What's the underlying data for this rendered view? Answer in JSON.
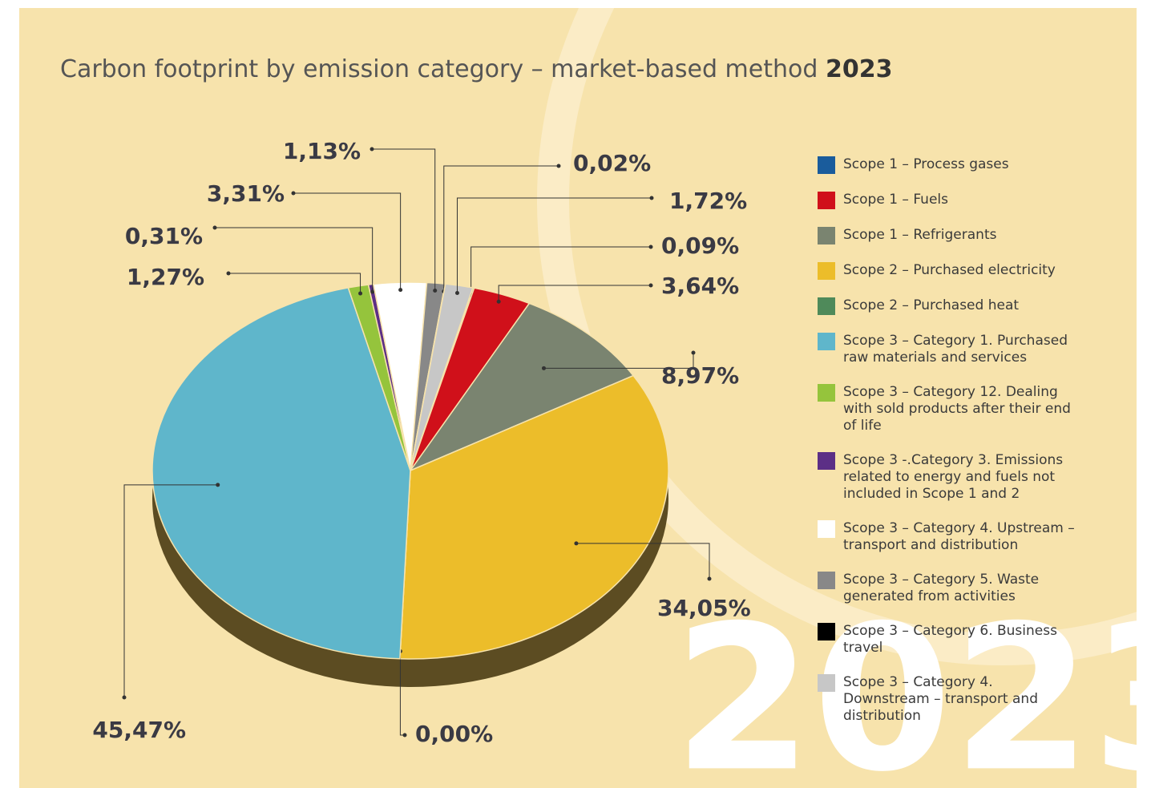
{
  "chart_data": {
    "type": "pie",
    "title": "Carbon footprint by emission category – market-based method",
    "title_year": "2023",
    "categories": [
      "Scope 1 – Process gases",
      "Scope 1 – Fuels",
      "Scope 1 – Refrigerants",
      "Scope 2 – Purchased electricity",
      "Scope 2 – Purchased heat",
      "Scope 3 – Category 1. Purchased raw materials and services",
      "Scope 3 – Category 12. Dealing with sold products after their end of life",
      "Scope 3 -.Category 3. Emissions related to energy and fuels not included in Scope 1 and 2",
      "Scope 3 – Category 4. Upstream – transport and distribution",
      "Scope 3 – Category 5. Waste generated from activities",
      "Scope 3 – Category 6. Business travel",
      "Scope 3 – Category 4. Downstream – transport and distribution"
    ],
    "values": [
      0.09,
      3.64,
      8.97,
      34.05,
      0.0,
      45.47,
      1.27,
      0.31,
      3.31,
      1.13,
      0.02,
      1.72
    ],
    "value_labels": [
      "0,09%",
      "3,64%",
      "8,97%",
      "34,05%",
      "0,00%",
      "45,47%",
      "1,27%",
      "0,31%",
      "3,31%",
      "1,13%",
      "0,02%",
      "1,72%"
    ],
    "colors": [
      "#1a5c9c",
      "#d0101a",
      "#7a8470",
      "#ecbd2a",
      "#4f8a5a",
      "#5fb6cb",
      "#95c43c",
      "#5c2f86",
      "#ffffff",
      "#888888",
      "#000000",
      "#c7c7c7"
    ]
  }
}
